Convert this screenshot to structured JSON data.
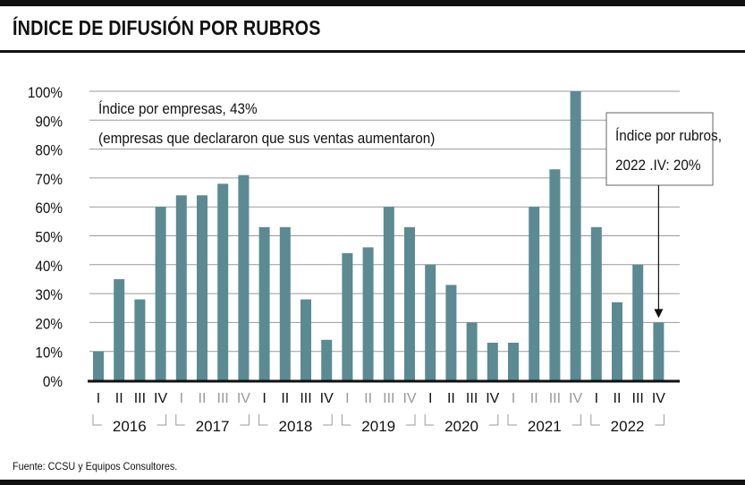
{
  "title": "ÍNDICE DE DIFUSIÓN POR RUBROS",
  "source": "Fuente: CCSU y Equipos Consultores.",
  "colors": {
    "bar": "#5b8a93",
    "grid": "#9a9a9a",
    "axis": "#111111",
    "tick_dim": "#999999",
    "text": "#111111"
  },
  "chart_data": {
    "type": "bar",
    "ylim": [
      0,
      100
    ],
    "y_ticks": [
      0,
      10,
      20,
      30,
      40,
      50,
      60,
      70,
      80,
      90,
      100
    ],
    "y_tick_labels": [
      "0%",
      "10%",
      "20%",
      "30%",
      "40%",
      "50%",
      "60%",
      "70%",
      "80%",
      "90%",
      "100%"
    ],
    "grid": true,
    "years": [
      {
        "year": "2016",
        "quarters": [
          "I",
          "II",
          "III",
          "IV"
        ],
        "values": [
          10,
          35,
          28,
          60
        ],
        "dim": false
      },
      {
        "year": "2017",
        "quarters": [
          "I",
          "II",
          "III",
          "IV"
        ],
        "values": [
          64,
          64,
          68,
          71
        ],
        "dim": true
      },
      {
        "year": "2018",
        "quarters": [
          "I",
          "II",
          "III",
          "IV"
        ],
        "values": [
          53,
          53,
          28,
          14
        ],
        "dim": false
      },
      {
        "year": "2019",
        "quarters": [
          "I",
          "II",
          "III",
          "IV"
        ],
        "values": [
          44,
          46,
          60,
          53
        ],
        "dim": true
      },
      {
        "year": "2020",
        "quarters": [
          "I",
          "II",
          "III",
          "IV"
        ],
        "values": [
          40,
          33,
          20,
          13
        ],
        "dim": false
      },
      {
        "year": "2021",
        "quarters": [
          "I",
          "II",
          "III",
          "IV"
        ],
        "values": [
          13,
          60,
          73,
          100
        ],
        "dim": true
      },
      {
        "year": "2022",
        "quarters": [
          "I",
          "II",
          "III",
          "IV"
        ],
        "values": [
          53,
          27,
          40,
          20
        ],
        "dim": false
      }
    ],
    "annotation_left": {
      "line1": "Índice por empresas, 43%",
      "line2": "(empresas que declararon que sus ventas aumentaron)"
    },
    "callout": {
      "line1": "Índice por rubros,",
      "line2": "2022 .IV: 20%",
      "target_year": "2022",
      "target_quarter": "IV"
    }
  }
}
